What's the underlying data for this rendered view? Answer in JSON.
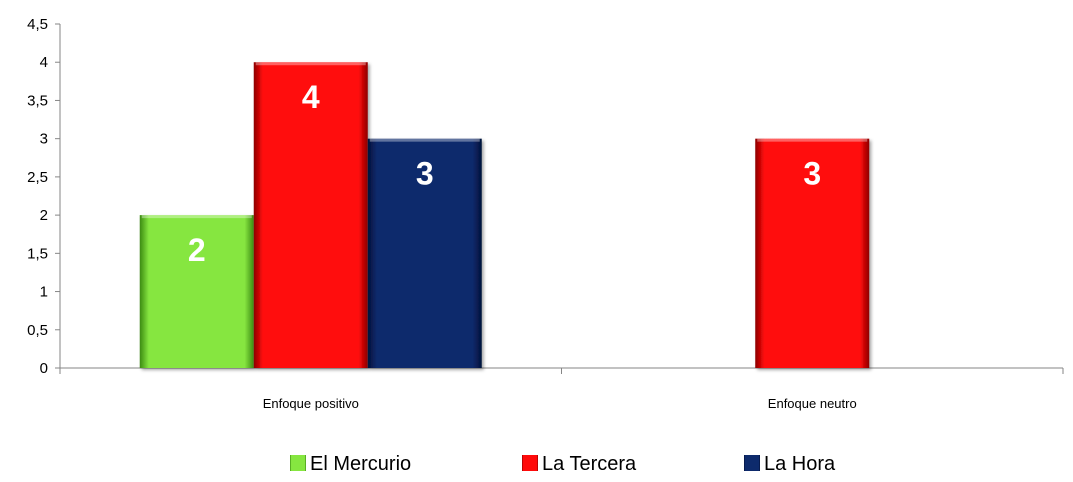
{
  "chart_data": {
    "type": "bar",
    "categories": [
      "Enfoque positivo",
      "Enfoque neutro"
    ],
    "series": [
      {
        "name": "El Mercurio",
        "values": [
          2,
          null
        ],
        "color": "#86e640",
        "color_dark": "#3c8a12"
      },
      {
        "name": "La Tercera",
        "values": [
          4,
          3
        ],
        "color": "#ff0a0a",
        "color_dark": "#8c0000"
      },
      {
        "name": "La Hora",
        "values": [
          3,
          null
        ],
        "color": "#0d2a6c",
        "color_dark": "#03113a"
      }
    ],
    "ylim": [
      0,
      4.5
    ],
    "yticks": [
      "0",
      "0,5",
      "1",
      "1,5",
      "2",
      "2,5",
      "3",
      "3,5",
      "4",
      "4,5"
    ],
    "grid": false,
    "legend_position": "bottom",
    "data_labels": true
  }
}
